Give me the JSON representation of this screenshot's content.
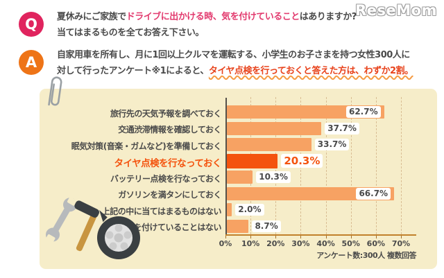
{
  "logo_text": "ReseMom",
  "question": {
    "badge": "Q",
    "line1_pre": "夏休みにご家族で",
    "line1_highlight": "ドライブに出かける時、気を付けていること",
    "line1_post": "はありますか?",
    "line2": "当てはまるものを全てお答え下さい。"
  },
  "answer": {
    "badge": "A",
    "line1": "自家用車を所有し、月に1回以上クルマを運転する、小学生のお子さまを持つ女性300人に",
    "line2_pre": "対して行ったアンケート※1によると、",
    "line2_highlight": "タイヤ点検を行っておくと答えた方は、わずか2割。"
  },
  "chart_data": {
    "type": "bar",
    "orientation": "horizontal",
    "categories": [
      "旅行先の天気予報を調べておく",
      "交通渋滞情報を確認しておく",
      "眠気対策(音楽・ガムなど)を準備しておく",
      "タイヤ点検を行なっておく",
      "バッテリー点検を行なっておく",
      "ガソリンを満タンにしておく",
      "上記の中に当てはまるものはない",
      "気を付けていることはない"
    ],
    "values": [
      62.7,
      37.7,
      33.7,
      20.3,
      10.3,
      66.7,
      2.0,
      8.7
    ],
    "value_labels": [
      "62.7%",
      "37.7%",
      "33.7%",
      "20.3%",
      "10.3%",
      "66.7%",
      "2.0%",
      "8.7%"
    ],
    "highlight_index": 3,
    "label_inside_indices": [
      0,
      5
    ],
    "x_ticks": [
      "0%",
      "10%",
      "20%",
      "30%",
      "40%",
      "50%",
      "60%",
      "70%"
    ],
    "xlim": [
      0,
      70
    ],
    "grid": "dashed-vertical",
    "legend": "none",
    "note": "アンケート数:300人 複数回答",
    "bar_color": "#f7a263",
    "highlight_color": "#f4530e"
  },
  "colors": {
    "q_badge": "#e0245e",
    "a_badge": "#ee7417",
    "q_highlight_text": "#e23a6e",
    "a_highlight_text": "#e8431c",
    "wavy_underline": "#f59b43",
    "panel_background": "#f6edc9",
    "body_text": "#4a4a4a",
    "bar": "#f7a263",
    "highlight_bar": "#f4530e",
    "axis_vertical": "#55514a",
    "axis_baseline": "#c1802b",
    "gridline": "#d9bd93"
  }
}
